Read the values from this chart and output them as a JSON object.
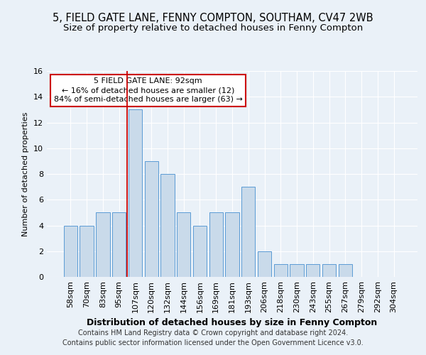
{
  "title1": "5, FIELD GATE LANE, FENNY COMPTON, SOUTHAM, CV47 2WB",
  "title2": "Size of property relative to detached houses in Fenny Compton",
  "xlabel": "Distribution of detached houses by size in Fenny Compton",
  "ylabel": "Number of detached properties",
  "categories": [
    "58sqm",
    "70sqm",
    "83sqm",
    "95sqm",
    "107sqm",
    "120sqm",
    "132sqm",
    "144sqm",
    "156sqm",
    "169sqm",
    "181sqm",
    "193sqm",
    "206sqm",
    "218sqm",
    "230sqm",
    "243sqm",
    "255sqm",
    "267sqm",
    "279sqm",
    "292sqm",
    "304sqm"
  ],
  "values": [
    4,
    4,
    5,
    5,
    13,
    9,
    8,
    5,
    4,
    5,
    5,
    7,
    2,
    1,
    1,
    1,
    1,
    1,
    0,
    0,
    0
  ],
  "bar_color": "#c9daea",
  "bar_edge_color": "#5b9bd5",
  "vline_x": 3.5,
  "vline_color": "#cc0000",
  "annotation_text": "5 FIELD GATE LANE: 92sqm\n← 16% of detached houses are smaller (12)\n84% of semi-detached houses are larger (63) →",
  "annotation_box_color": "#ffffff",
  "annotation_box_edge_color": "#cc0000",
  "ylim": [
    0,
    16
  ],
  "yticks": [
    0,
    2,
    4,
    6,
    8,
    10,
    12,
    14,
    16
  ],
  "footer1": "Contains HM Land Registry data © Crown copyright and database right 2024.",
  "footer2": "Contains public sector information licensed under the Open Government Licence v3.0.",
  "background_color": "#eaf1f8",
  "plot_background": "#eaf1f8",
  "grid_color": "#ffffff",
  "title1_fontsize": 10.5,
  "title2_fontsize": 9.5,
  "xlabel_fontsize": 9,
  "ylabel_fontsize": 8,
  "tick_fontsize": 8,
  "annotation_fontsize": 8,
  "footer_fontsize": 7
}
